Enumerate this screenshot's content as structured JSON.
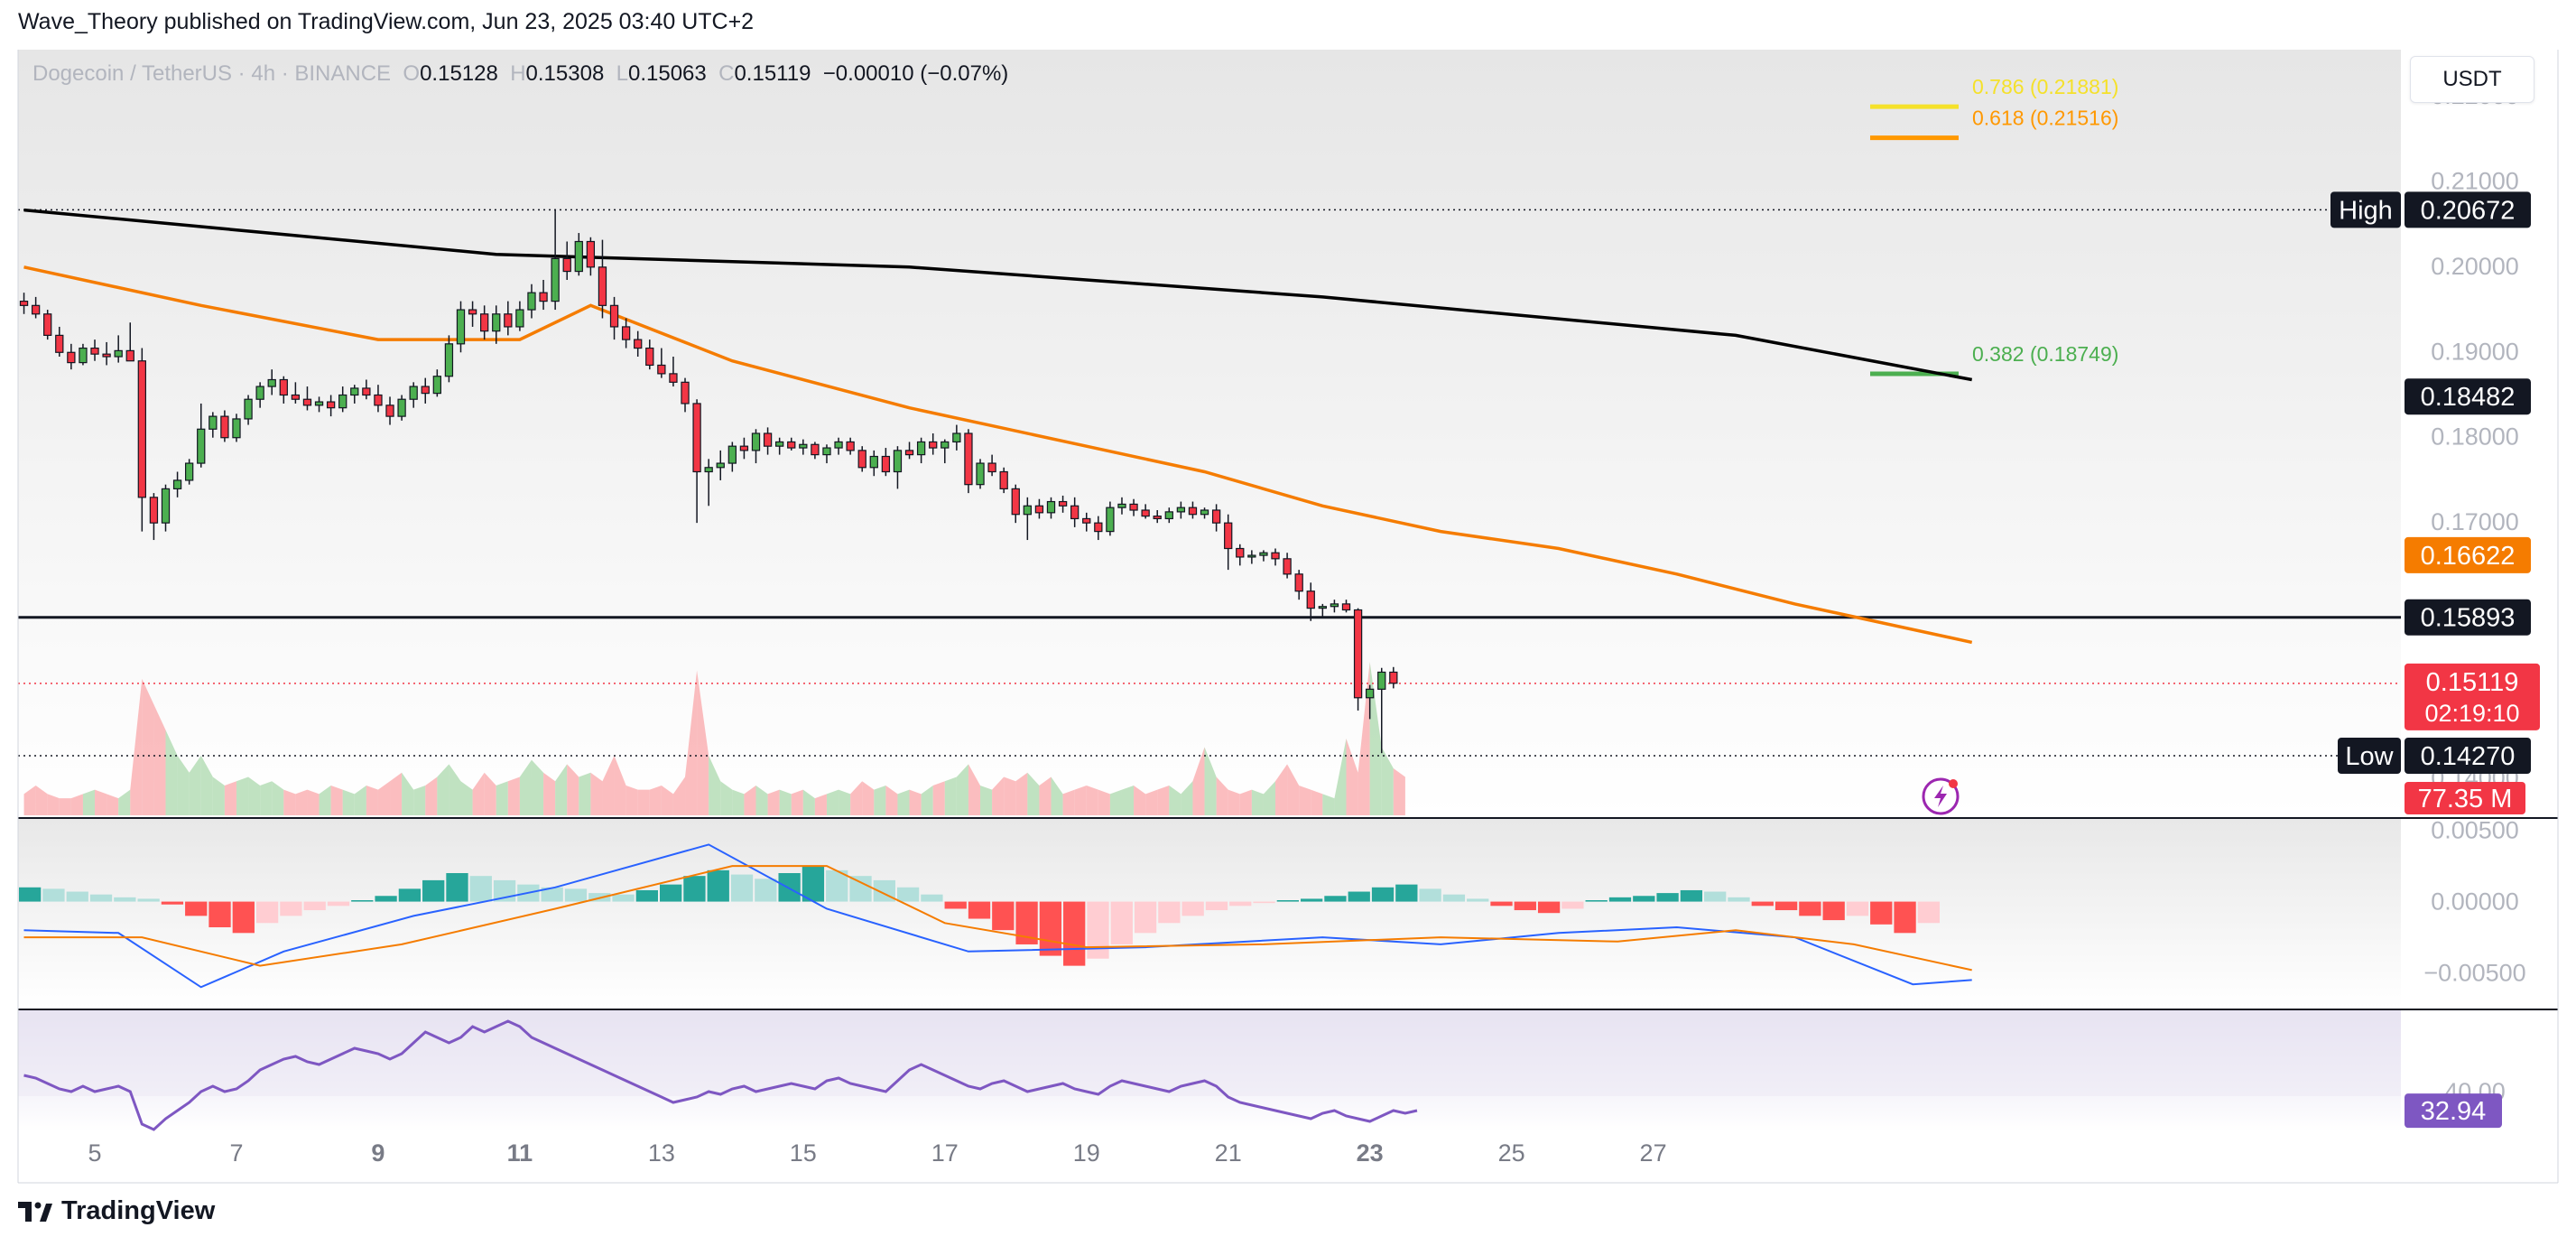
{
  "header": {
    "publisher_line": "Wave_Theory published on TradingView.com, Jun 23, 2025 03:40 UTC+2"
  },
  "legend": {
    "symbol": "Dogecoin / TetherUS · 4h · BINANCE",
    "o_label": "O",
    "open": "0.15128",
    "h_label": "H",
    "high": "0.15308",
    "l_label": "L",
    "low": "0.15063",
    "c_label": "C",
    "close": "0.15119",
    "change": "−0.00010 (−0.07%)"
  },
  "currency_badge": "USDT",
  "footer": {
    "brand": "TradingView"
  },
  "colors": {
    "up": "#4caf50",
    "down": "#f23645",
    "ema_fast": "#f57c00",
    "ema_slow": "#000000",
    "macd": "#2962ff",
    "signal": "#f57c00",
    "rsi": "#7e57c2",
    "fib_786": "#f5e12a",
    "fib_618": "#ff9800",
    "fib_382": "#4caf50",
    "current_price": "#f23645",
    "vol_badge": "#f23645"
  },
  "chart_data": {
    "type": "candlestick",
    "timeframe": "4h",
    "x_ticks": [
      "5",
      "7",
      "9",
      "11",
      "13",
      "15",
      "17",
      "19",
      "21",
      "23",
      "25",
      "27"
    ],
    "x_ticks_bold": [
      "9",
      "11",
      "23"
    ],
    "y_ticks": [
      "0.22000",
      "0.21000",
      "0.20000",
      "0.19000",
      "0.18000",
      "0.17000",
      "0.14000"
    ],
    "ylim": [
      0.1355,
      0.2255
    ],
    "candles": [
      [
        0.196,
        0.197,
        0.1945,
        0.1955
      ],
      [
        0.1955,
        0.1965,
        0.194,
        0.1945
      ],
      [
        0.1945,
        0.195,
        0.1915,
        0.192
      ],
      [
        0.192,
        0.193,
        0.1895,
        0.19
      ],
      [
        0.19,
        0.191,
        0.188,
        0.1888
      ],
      [
        0.1888,
        0.191,
        0.1885,
        0.1905
      ],
      [
        0.1905,
        0.1915,
        0.189,
        0.1898
      ],
      [
        0.1898,
        0.1912,
        0.1885,
        0.1895
      ],
      [
        0.1895,
        0.192,
        0.1888,
        0.1902
      ],
      [
        0.1902,
        0.1935,
        0.1892,
        0.189
      ],
      [
        0.189,
        0.1905,
        0.169,
        0.173
      ],
      [
        0.173,
        0.1735,
        0.168,
        0.17
      ],
      [
        0.17,
        0.1745,
        0.169,
        0.174
      ],
      [
        0.174,
        0.176,
        0.173,
        0.175
      ],
      [
        0.175,
        0.1775,
        0.1745,
        0.177
      ],
      [
        0.177,
        0.184,
        0.1765,
        0.181
      ],
      [
        0.181,
        0.183,
        0.18,
        0.1825
      ],
      [
        0.1825,
        0.1832,
        0.1795,
        0.18
      ],
      [
        0.18,
        0.1828,
        0.1795,
        0.1822
      ],
      [
        0.1822,
        0.185,
        0.1815,
        0.1845
      ],
      [
        0.1845,
        0.1865,
        0.1835,
        0.186
      ],
      [
        0.186,
        0.188,
        0.185,
        0.1868
      ],
      [
        0.1868,
        0.1872,
        0.184,
        0.185
      ],
      [
        0.185,
        0.1865,
        0.184,
        0.1845
      ],
      [
        0.1845,
        0.186,
        0.1832,
        0.1838
      ],
      [
        0.1838,
        0.1848,
        0.183,
        0.1842
      ],
      [
        0.1842,
        0.185,
        0.1825,
        0.1835
      ],
      [
        0.1835,
        0.186,
        0.183,
        0.185
      ],
      [
        0.185,
        0.1862,
        0.184,
        0.1858
      ],
      [
        0.1858,
        0.1868,
        0.1845,
        0.185
      ],
      [
        0.185,
        0.1862,
        0.183,
        0.1838
      ],
      [
        0.1838,
        0.1848,
        0.1815,
        0.1825
      ],
      [
        0.1825,
        0.185,
        0.182,
        0.1845
      ],
      [
        0.1845,
        0.1865,
        0.1835,
        0.186
      ],
      [
        0.186,
        0.187,
        0.184,
        0.1852
      ],
      [
        0.1852,
        0.188,
        0.1848,
        0.1872
      ],
      [
        0.1872,
        0.192,
        0.1865,
        0.191
      ],
      [
        0.191,
        0.196,
        0.19,
        0.195
      ],
      [
        0.195,
        0.196,
        0.193,
        0.1945
      ],
      [
        0.1945,
        0.1955,
        0.1915,
        0.1925
      ],
      [
        0.1925,
        0.1955,
        0.191,
        0.1945
      ],
      [
        0.1945,
        0.196,
        0.192,
        0.193
      ],
      [
        0.193,
        0.196,
        0.1925,
        0.195
      ],
      [
        0.195,
        0.198,
        0.194,
        0.197
      ],
      [
        0.197,
        0.1985,
        0.195,
        0.196
      ],
      [
        0.196,
        0.2068,
        0.195,
        0.201
      ],
      [
        0.201,
        0.203,
        0.1985,
        0.1995
      ],
      [
        0.1995,
        0.204,
        0.199,
        0.203
      ],
      [
        0.203,
        0.2035,
        0.199,
        0.2
      ],
      [
        0.2,
        0.2032,
        0.194,
        0.1955
      ],
      [
        0.1955,
        0.1965,
        0.1915,
        0.193
      ],
      [
        0.193,
        0.194,
        0.1905,
        0.1915
      ],
      [
        0.1915,
        0.1925,
        0.1895,
        0.1905
      ],
      [
        0.1905,
        0.1915,
        0.188,
        0.1885
      ],
      [
        0.1885,
        0.1905,
        0.187,
        0.1875
      ],
      [
        0.1875,
        0.1895,
        0.186,
        0.1865
      ],
      [
        0.1865,
        0.187,
        0.183,
        0.184
      ],
      [
        0.184,
        0.1845,
        0.17,
        0.176
      ],
      [
        0.176,
        0.1775,
        0.172,
        0.1765
      ],
      [
        0.1765,
        0.1785,
        0.175,
        0.177
      ],
      [
        0.177,
        0.1795,
        0.176,
        0.179
      ],
      [
        0.179,
        0.18,
        0.1775,
        0.1785
      ],
      [
        0.1785,
        0.181,
        0.177,
        0.1805
      ],
      [
        0.1805,
        0.1812,
        0.178,
        0.179
      ],
      [
        0.179,
        0.18,
        0.178,
        0.1795
      ],
      [
        0.1795,
        0.18,
        0.1785,
        0.1788
      ],
      [
        0.1788,
        0.1798,
        0.178,
        0.1792
      ],
      [
        0.1792,
        0.1795,
        0.1775,
        0.178
      ],
      [
        0.178,
        0.1792,
        0.177,
        0.1788
      ],
      [
        0.1788,
        0.18,
        0.178,
        0.1795
      ],
      [
        0.1795,
        0.18,
        0.178,
        0.1785
      ],
      [
        0.1785,
        0.179,
        0.176,
        0.1765
      ],
      [
        0.1765,
        0.1785,
        0.1755,
        0.1778
      ],
      [
        0.1778,
        0.1788,
        0.1755,
        0.176
      ],
      [
        0.176,
        0.179,
        0.174,
        0.1785
      ],
      [
        0.1785,
        0.1795,
        0.1775,
        0.178
      ],
      [
        0.178,
        0.18,
        0.177,
        0.1795
      ],
      [
        0.1795,
        0.1805,
        0.178,
        0.1788
      ],
      [
        0.1788,
        0.1798,
        0.177,
        0.1795
      ],
      [
        0.1795,
        0.1815,
        0.1785,
        0.1805
      ],
      [
        0.1805,
        0.181,
        0.1735,
        0.1745
      ],
      [
        0.1745,
        0.1775,
        0.174,
        0.177
      ],
      [
        0.177,
        0.178,
        0.1755,
        0.176
      ],
      [
        0.176,
        0.1765,
        0.1735,
        0.174
      ],
      [
        0.174,
        0.1745,
        0.17,
        0.171
      ],
      [
        0.171,
        0.173,
        0.168,
        0.172
      ],
      [
        0.172,
        0.1728,
        0.1705,
        0.1712
      ],
      [
        0.1712,
        0.173,
        0.1705,
        0.1725
      ],
      [
        0.1725,
        0.1732,
        0.1712,
        0.172
      ],
      [
        0.172,
        0.173,
        0.1695,
        0.1705
      ],
      [
        0.1705,
        0.1712,
        0.169,
        0.17
      ],
      [
        0.17,
        0.1708,
        0.168,
        0.169
      ],
      [
        0.169,
        0.1725,
        0.1685,
        0.1718
      ],
      [
        0.1718,
        0.173,
        0.171,
        0.1722
      ],
      [
        0.1722,
        0.1728,
        0.1708,
        0.1715
      ],
      [
        0.1715,
        0.1722,
        0.1705,
        0.1708
      ],
      [
        0.1708,
        0.1715,
        0.17,
        0.1705
      ],
      [
        0.1705,
        0.1718,
        0.17,
        0.1713
      ],
      [
        0.1713,
        0.1725,
        0.1705,
        0.1718
      ],
      [
        0.1718,
        0.1725,
        0.1705,
        0.171
      ],
      [
        0.171,
        0.1718,
        0.1705,
        0.1715
      ],
      [
        0.1715,
        0.1722,
        0.169,
        0.17
      ],
      [
        0.17,
        0.171,
        0.1645,
        0.167
      ],
      [
        0.167,
        0.1675,
        0.165,
        0.166
      ],
      [
        0.166,
        0.1668,
        0.1652,
        0.1662
      ],
      [
        0.1662,
        0.1668,
        0.1655,
        0.1665
      ],
      [
        0.1665,
        0.167,
        0.165,
        0.1658
      ],
      [
        0.1658,
        0.1665,
        0.1635,
        0.164
      ],
      [
        0.164,
        0.1645,
        0.161,
        0.162
      ],
      [
        0.162,
        0.163,
        0.1585,
        0.16
      ],
      [
        0.16,
        0.1605,
        0.159,
        0.1602
      ],
      [
        0.1602,
        0.161,
        0.1595,
        0.1605
      ],
      [
        0.1605,
        0.161,
        0.1595,
        0.1598
      ],
      [
        0.1598,
        0.16,
        0.148,
        0.1495
      ],
      [
        0.1495,
        0.151,
        0.147,
        0.1505
      ],
      [
        0.1505,
        0.153,
        0.143,
        0.1525
      ],
      [
        0.1525,
        0.1531,
        0.1506,
        0.1512
      ]
    ],
    "ema_slow": [
      [
        0,
        0.2067
      ],
      [
        40,
        0.2015
      ],
      [
        75,
        0.2
      ],
      [
        110,
        0.1965
      ],
      [
        145,
        0.192
      ],
      [
        165,
        0.1868
      ]
    ],
    "ema_fast": [
      [
        0,
        0.2
      ],
      [
        15,
        0.1955
      ],
      [
        30,
        0.1915
      ],
      [
        42,
        0.1915
      ],
      [
        48,
        0.1955
      ],
      [
        60,
        0.189
      ],
      [
        75,
        0.1835
      ],
      [
        90,
        0.179
      ],
      [
        100,
        0.176
      ],
      [
        110,
        0.172
      ],
      [
        120,
        0.169
      ],
      [
        130,
        0.167
      ],
      [
        140,
        0.164
      ],
      [
        150,
        0.1605
      ],
      [
        165,
        0.156
      ]
    ],
    "volume": [
      5,
      7,
      5,
      4,
      4,
      5,
      6,
      5,
      4,
      6,
      32,
      26,
      20,
      14,
      10,
      14,
      9,
      7,
      8,
      9,
      7,
      8,
      6,
      5,
      6,
      5,
      7,
      6,
      5,
      7,
      6,
      8,
      10,
      6,
      7,
      9,
      12,
      8,
      6,
      10,
      7,
      8,
      9,
      13,
      10,
      8,
      12,
      9,
      10,
      8,
      14,
      7,
      6,
      6,
      7,
      5,
      9,
      34,
      14,
      8,
      6,
      5,
      7,
      5,
      6,
      5,
      6,
      4,
      5,
      6,
      5,
      8,
      6,
      7,
      5,
      6,
      5,
      7,
      8,
      9,
      12,
      7,
      6,
      9,
      8,
      10,
      7,
      9,
      5,
      6,
      7,
      6,
      5,
      6,
      7,
      5,
      6,
      7,
      5,
      8,
      16,
      9,
      6,
      5,
      6,
      5,
      8,
      12,
      7,
      6,
      5,
      4,
      18,
      10,
      36,
      16,
      11,
      9
    ],
    "macd_hist": [
      0.001,
      0.0009,
      0.0007,
      0.0005,
      0.0003,
      0.0002,
      -0.0002,
      -0.001,
      -0.0018,
      -0.0022,
      -0.0015,
      -0.001,
      -0.0006,
      -0.0003,
      0.0001,
      0.0004,
      0.0009,
      0.0015,
      0.002,
      0.0018,
      0.0015,
      0.0012,
      0.001,
      0.0009,
      0.0006,
      0.0005,
      0.0008,
      0.0012,
      0.0018,
      0.0022,
      0.0019,
      0.0016,
      0.002,
      0.0025,
      0.0022,
      0.0018,
      0.0015,
      0.001,
      0.0005,
      -0.0005,
      -0.0012,
      -0.002,
      -0.003,
      -0.0038,
      -0.0045,
      -0.004,
      -0.003,
      -0.0022,
      -0.0015,
      -0.001,
      -0.0006,
      -0.0003,
      -0.0001,
      0.0001,
      0.0002,
      0.0004,
      0.0007,
      0.001,
      0.0012,
      0.0009,
      0.0005,
      0.0002,
      -0.0003,
      -0.0006,
      -0.0008,
      -0.0005,
      0.0001,
      0.0003,
      0.0004,
      0.0006,
      0.0008,
      0.0007,
      0.0003,
      -0.0003,
      -0.0006,
      -0.001,
      -0.0013,
      -0.001,
      -0.0016,
      -0.0022,
      -0.0015
    ],
    "macd_ylim": [
      -0.0075,
      0.0058
    ],
    "macd_ticks": [
      "0.00500",
      "0.00000",
      "−0.00500"
    ],
    "macd_line": [
      [
        0,
        -0.002
      ],
      [
        8,
        -0.0022
      ],
      [
        15,
        -0.006
      ],
      [
        22,
        -0.0035
      ],
      [
        33,
        -0.001
      ],
      [
        45,
        0.001
      ],
      [
        58,
        0.004
      ],
      [
        68,
        -0.0005
      ],
      [
        80,
        -0.0035
      ],
      [
        95,
        -0.0032
      ],
      [
        110,
        -0.0025
      ],
      [
        120,
        -0.003
      ],
      [
        130,
        -0.0022
      ],
      [
        140,
        -0.0018
      ],
      [
        150,
        -0.0025
      ],
      [
        160,
        -0.0058
      ],
      [
        165,
        -0.0055
      ]
    ],
    "signal_line": [
      [
        0,
        -0.0025
      ],
      [
        10,
        -0.0025
      ],
      [
        20,
        -0.0045
      ],
      [
        32,
        -0.003
      ],
      [
        45,
        -0.0005
      ],
      [
        60,
        0.0025
      ],
      [
        68,
        0.0025
      ],
      [
        78,
        -0.0015
      ],
      [
        90,
        -0.0032
      ],
      [
        105,
        -0.003
      ],
      [
        120,
        -0.0025
      ],
      [
        135,
        -0.0028
      ],
      [
        145,
        -0.002
      ],
      [
        155,
        -0.003
      ],
      [
        165,
        -0.0048
      ]
    ],
    "rsi": [
      46,
      45,
      43,
      41,
      40,
      42,
      40,
      41,
      42,
      40,
      28,
      26,
      30,
      33,
      36,
      40,
      42,
      40,
      41,
      44,
      48,
      50,
      52,
      53,
      51,
      50,
      52,
      54,
      56,
      55,
      54,
      52,
      54,
      58,
      62,
      60,
      58,
      60,
      64,
      62,
      64,
      66,
      64,
      60,
      58,
      56,
      54,
      52,
      50,
      48,
      46,
      44,
      42,
      40,
      38,
      36,
      37,
      38,
      40,
      39,
      41,
      42,
      40,
      41,
      42,
      43,
      42,
      41,
      44,
      45,
      43,
      42,
      41,
      40,
      44,
      48,
      50,
      48,
      46,
      44,
      42,
      41,
      43,
      44,
      42,
      40,
      41,
      42,
      43,
      41,
      40,
      39,
      42,
      44,
      43,
      42,
      41,
      40,
      42,
      43,
      44,
      42,
      38,
      36,
      35,
      34,
      33,
      32,
      31,
      30,
      32,
      33,
      31,
      30,
      29,
      31,
      33,
      32,
      33
    ],
    "rsi_ylim": [
      25,
      70
    ]
  },
  "price_labels": {
    "high_label": "High",
    "high_value": "0.20672",
    "ema_slow_value": "0.18482",
    "ema_fast_value": "0.16622",
    "support_value": "0.15893",
    "current_price": "0.15119",
    "countdown": "02:19:10",
    "low_label": "Low",
    "low_value": "0.14270",
    "volume_value": "77.35 M",
    "rsi_value": "32.94",
    "rsi_partial_tick": "40.00"
  },
  "levels": {
    "high": 0.20672,
    "low": 0.1427,
    "support": 0.15893,
    "current": 0.15119
  },
  "fib": [
    {
      "label": "0.786 (0.21881)",
      "level": 0.786,
      "price": 0.21881,
      "color": "#f5e12a"
    },
    {
      "label": "0.618 (0.21516)",
      "level": 0.618,
      "price": 0.21516,
      "color": "#ff9800"
    },
    {
      "label": "0.382 (0.18749)",
      "level": 0.382,
      "price": 0.18749,
      "color": "#4caf50"
    }
  ]
}
